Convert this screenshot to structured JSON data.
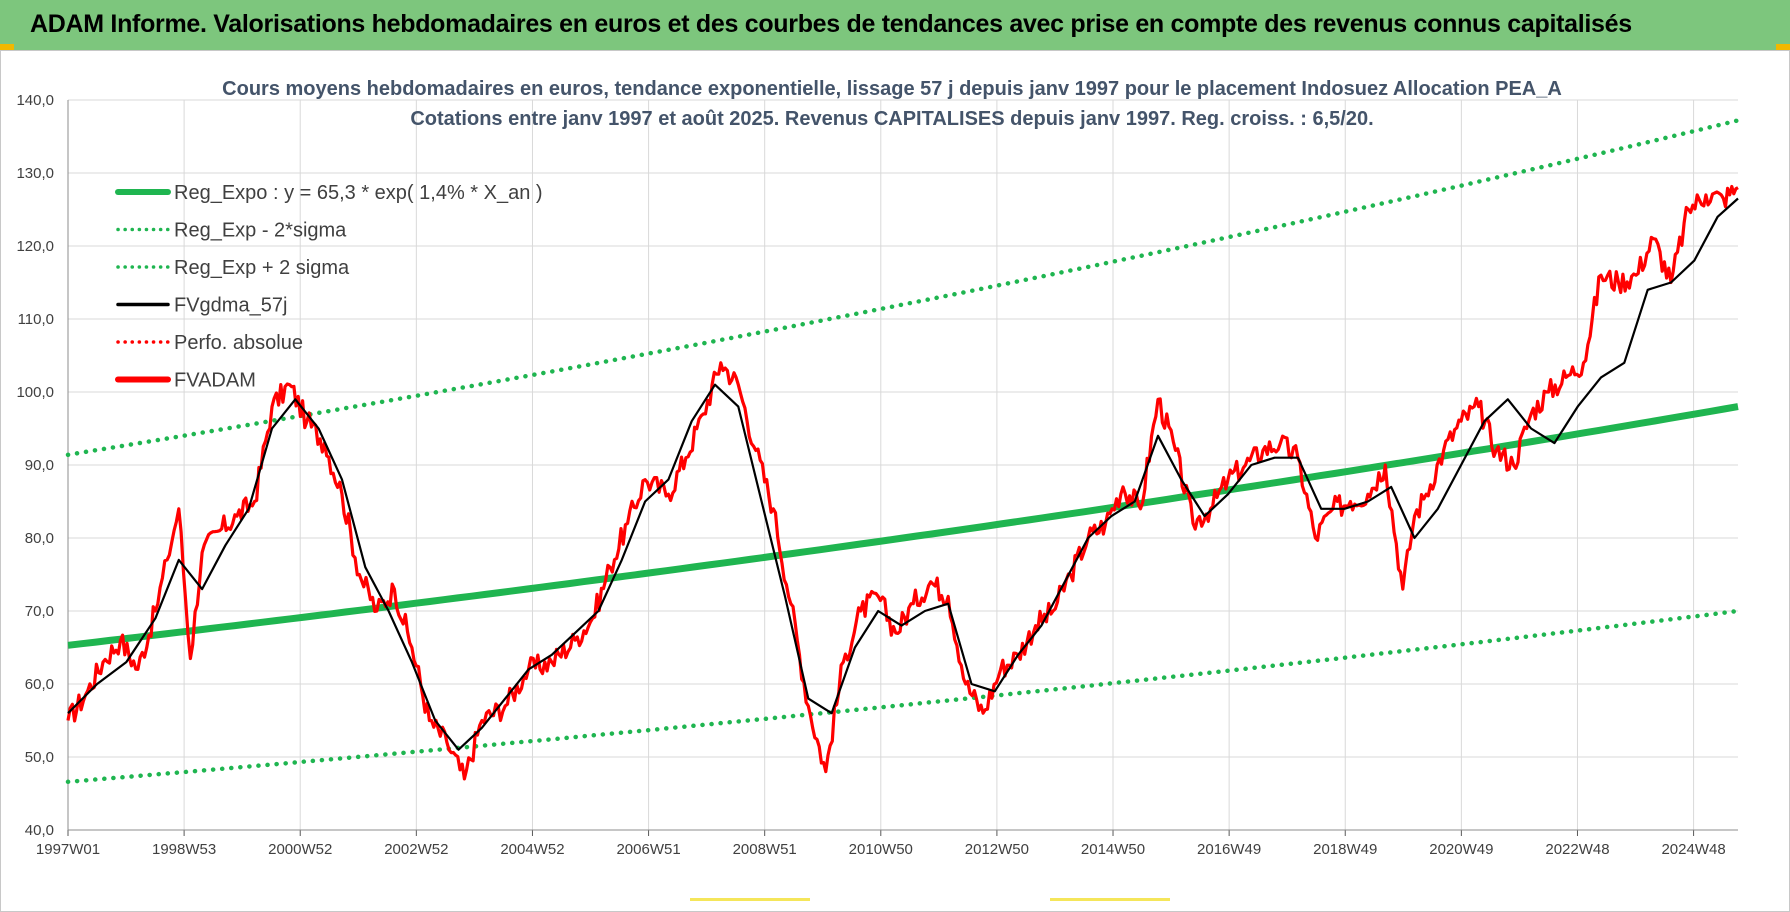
{
  "banner": {
    "title": "ADAM Informe. Valorisations hebdomadaires en euros et des courbes de tendances avec prise en compte des revenus connus capitalisés"
  },
  "colors": {
    "banner_bg": "#7dc67d",
    "trend": "#1fb550",
    "bands": "#1fb550",
    "fvadam": "#ff0000",
    "fvgdma": "#000000",
    "perfo": "#ff0000",
    "title": "#44546a",
    "grid": "#d9d9d9"
  },
  "chart_data": {
    "type": "line",
    "title": "Cours moyens hebdomadaires en euros, tendance exponentielle, lissage 57 j depuis janv 1997 pour le placement Indosuez Allocation PEA_A",
    "subtitle": "Cotations entre janv 1997 et août 2025. Revenus CAPITALISES depuis janv 1997. Reg. croiss. : 6,5/20.",
    "xlabel": "",
    "ylabel": "",
    "x_range": [
      "1997W01",
      "2025W35"
    ],
    "ylim": [
      40,
      140
    ],
    "y_ticks": [
      "40,0",
      "50,0",
      "60,0",
      "70,0",
      "80,0",
      "90,0",
      "100,0",
      "110,0",
      "120,0",
      "130,0",
      "140,0"
    ],
    "x_ticks": [
      "1997W01",
      "1998W53",
      "2000W52",
      "2002W52",
      "2004W52",
      "2006W51",
      "2008W51",
      "2010W50",
      "2012W50",
      "2014W50",
      "2016W49",
      "2018W49",
      "2020W49",
      "2022W48",
      "2024W48"
    ],
    "grid": "horizontal and vertical",
    "legend_placement": "top-left",
    "legend": [
      {
        "key": "reg",
        "label": "Reg_Expo : y = 65,3 * exp( 1,4% *  X_an )",
        "style": "solid-thick"
      },
      {
        "key": "low",
        "label": "Reg_Exp - 2*sigma",
        "style": "dotted"
      },
      {
        "key": "high",
        "label": "Reg_Exp + 2 sigma",
        "style": "dotted"
      },
      {
        "key": "fvgdma",
        "label": "FVgdma_57j",
        "style": "solid"
      },
      {
        "key": "perfo",
        "label": "Perfo. absolue",
        "style": "dotted"
      },
      {
        "key": "fvadam",
        "label": "FVADAM",
        "style": "solid-thick"
      }
    ],
    "series": [
      {
        "name": "Reg_Expo : y = 65,3 * exp( 1,4% *  X_an )",
        "x": [
          1997.0,
          2025.65
        ],
        "values": [
          65.3,
          98.0
        ]
      },
      {
        "name": "Reg_Exp - 2*sigma",
        "x": [
          1997.0,
          2025.65
        ],
        "values": [
          46.6,
          70.0
        ]
      },
      {
        "name": "Reg_Exp + 2 sigma",
        "x": [
          1997.0,
          2025.65
        ],
        "values": [
          91.4,
          137.2
        ]
      },
      {
        "name": "FVADAM",
        "x": [
          1997.0,
          1997.3,
          1997.6,
          1997.9,
          1998.2,
          1998.5,
          1998.7,
          1998.9,
          1999.1,
          1999.3,
          1999.6,
          1999.9,
          2000.2,
          2000.5,
          2000.8,
          2001.1,
          2001.4,
          2001.7,
          2002.0,
          2002.3,
          2002.6,
          2002.9,
          2003.2,
          2003.5,
          2003.8,
          2004.1,
          2004.5,
          2004.9,
          2005.3,
          2005.7,
          2006.0,
          2006.3,
          2006.6,
          2006.9,
          2007.3,
          2007.6,
          2007.9,
          2008.2,
          2008.5,
          2008.8,
          2009.1,
          2009.4,
          2009.7,
          2010.0,
          2010.3,
          2010.6,
          2010.9,
          2011.2,
          2011.5,
          2011.8,
          2012.1,
          2012.4,
          2012.7,
          2013.0,
          2013.3,
          2013.6,
          2013.9,
          2014.2,
          2014.5,
          2014.8,
          2015.1,
          2015.4,
          2015.7,
          2016.0,
          2016.3,
          2016.6,
          2016.9,
          2017.2,
          2017.5,
          2017.8,
          2018.1,
          2018.4,
          2018.7,
          2019.0,
          2019.3,
          2019.6,
          2019.9,
          2020.1,
          2020.3,
          2020.6,
          2020.9,
          2021.2,
          2021.5,
          2021.8,
          2022.1,
          2022.4,
          2022.7,
          2023.0,
          2023.3,
          2023.6,
          2023.9,
          2024.2,
          2024.5,
          2024.8,
          2025.1,
          2025.4,
          2025.65
        ],
        "values": [
          55.0,
          58.5,
          63.0,
          66.0,
          62.0,
          70.0,
          77.0,
          84.0,
          63.5,
          78.0,
          81.0,
          83.0,
          85.0,
          98.0,
          101.0,
          96.0,
          93.0,
          86.0,
          75.0,
          70.0,
          73.0,
          65.0,
          55.0,
          52.0,
          47.0,
          55.0,
          57.0,
          62.0,
          63.0,
          66.0,
          69.0,
          76.0,
          82.0,
          88.0,
          86.0,
          91.0,
          97.0,
          104.0,
          101.0,
          92.0,
          84.0,
          71.0,
          57.0,
          48.0,
          63.0,
          70.0,
          72.0,
          67.0,
          71.0,
          74.0,
          72.0,
          60.0,
          56.0,
          62.0,
          64.0,
          68.0,
          70.0,
          75.0,
          80.0,
          82.0,
          87.0,
          84.0,
          99.0,
          92.0,
          82.0,
          84.0,
          88.0,
          90.0,
          92.0,
          93.0,
          91.0,
          80.0,
          84.0,
          85.0,
          86.0,
          90.0,
          73.0,
          83.0,
          86.0,
          92.0,
          96.0,
          98.0,
          92.0,
          90.0,
          97.0,
          100.0,
          102.0,
          104.0,
          116.0,
          115.0,
          116.0,
          121.0,
          115.0,
          125.0,
          127.0,
          126.5,
          128.0
        ]
      },
      {
        "name": "FVgdma_57j",
        "x": [
          1997.0,
          1997.5,
          1998.0,
          1998.5,
          1998.9,
          1999.3,
          1999.7,
          2000.1,
          2000.5,
          2000.9,
          2001.3,
          2001.7,
          2002.1,
          2002.5,
          2002.9,
          2003.3,
          2003.7,
          2004.1,
          2004.5,
          2004.9,
          2005.3,
          2005.7,
          2006.1,
          2006.5,
          2006.9,
          2007.3,
          2007.7,
          2008.1,
          2008.5,
          2008.9,
          2009.3,
          2009.7,
          2010.1,
          2010.5,
          2010.9,
          2011.3,
          2011.7,
          2012.1,
          2012.5,
          2012.9,
          2013.3,
          2013.7,
          2014.1,
          2014.5,
          2014.9,
          2015.3,
          2015.7,
          2016.1,
          2016.5,
          2016.9,
          2017.3,
          2017.7,
          2018.1,
          2018.5,
          2018.9,
          2019.3,
          2019.7,
          2020.1,
          2020.5,
          2020.9,
          2021.3,
          2021.7,
          2022.1,
          2022.5,
          2022.9,
          2023.3,
          2023.7,
          2024.1,
          2024.5,
          2024.9,
          2025.3,
          2025.65
        ],
        "values": [
          56.0,
          60.0,
          63.0,
          69.0,
          77.0,
          73.0,
          79.0,
          84.0,
          95.0,
          99.0,
          95.0,
          88.0,
          76.0,
          70.0,
          63.0,
          55.0,
          51.0,
          54.0,
          58.0,
          62.0,
          64.0,
          67.0,
          70.0,
          77.0,
          85.0,
          88.0,
          96.0,
          101.0,
          98.0,
          85.0,
          72.0,
          58.0,
          56.0,
          65.0,
          70.0,
          68.0,
          70.0,
          71.0,
          60.0,
          59.0,
          64.0,
          68.0,
          74.0,
          80.0,
          83.0,
          85.0,
          94.0,
          88.0,
          83.0,
          86.0,
          90.0,
          91.0,
          91.0,
          84.0,
          84.0,
          85.0,
          87.0,
          80.0,
          84.0,
          90.0,
          96.0,
          99.0,
          95.0,
          93.0,
          98.0,
          102.0,
          104.0,
          114.0,
          115.0,
          118.0,
          124.0,
          126.5
        ]
      }
    ]
  }
}
